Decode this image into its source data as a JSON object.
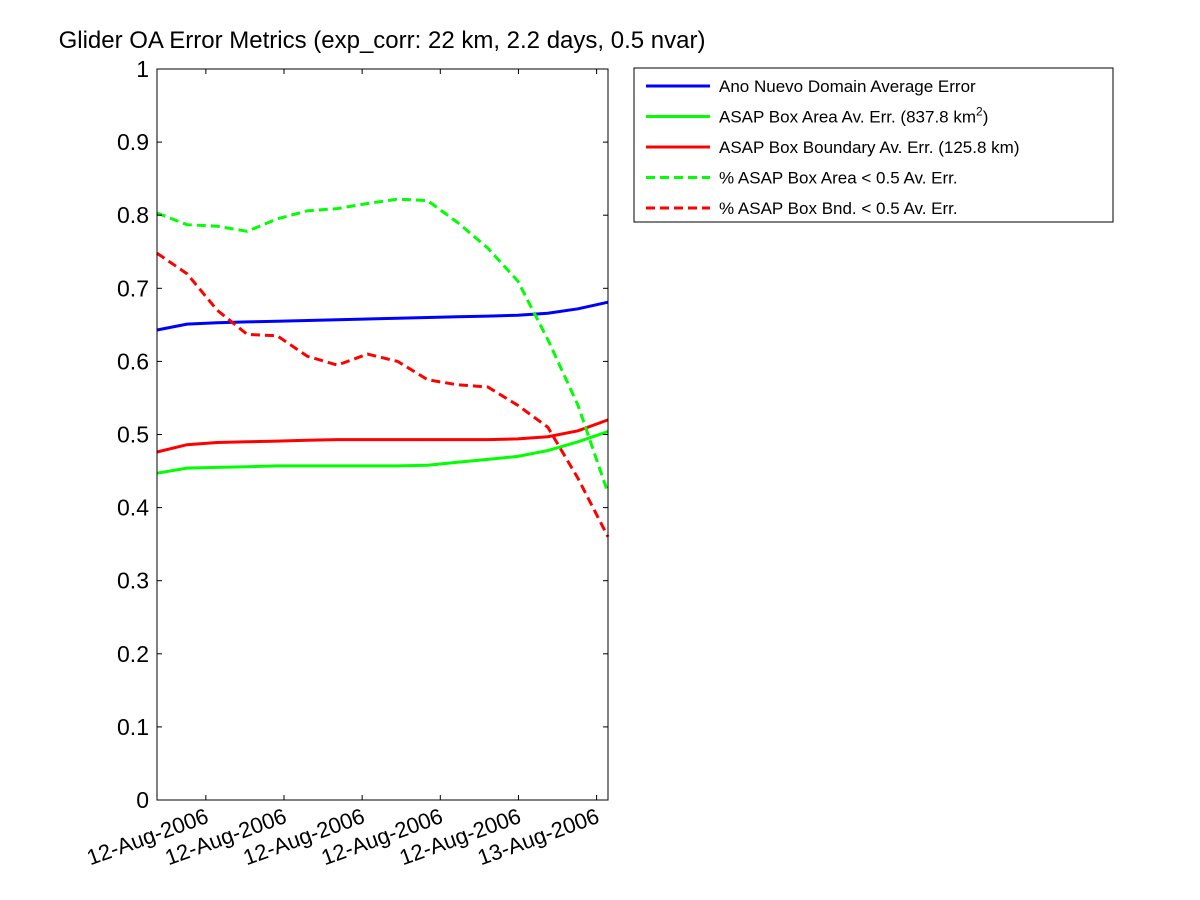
{
  "chart_data": {
    "type": "line",
    "title": "Glider OA Error Metrics (exp_corr: 22 km, 2.2 days, 0.5 nvar)",
    "xlabel": "",
    "ylabel": "",
    "ylim": [
      0,
      1
    ],
    "xlim": [
      "2006-08-12T01:30",
      "2006-08-13T00:35"
    ],
    "yticks": [
      "0",
      "0.1",
      "0.2",
      "0.3",
      "0.4",
      "0.5",
      "0.6",
      "0.7",
      "0.8",
      "0.9",
      "1"
    ],
    "xticks": [
      {
        "t": "2006-08-12T04:00",
        "label": "12-Aug-2006"
      },
      {
        "t": "2006-08-12T08:00",
        "label": "12-Aug-2006"
      },
      {
        "t": "2006-08-12T12:00",
        "label": "12-Aug-2006"
      },
      {
        "t": "2006-08-12T16:00",
        "label": "12-Aug-2006"
      },
      {
        "t": "2006-08-12T20:00",
        "label": "12-Aug-2006"
      },
      {
        "t": "2006-08-13T00:00",
        "label": "13-Aug-2006"
      }
    ],
    "grid": false,
    "legend_placement": "outside-top-right",
    "x": [
      "2006-08-12T01:30",
      "2006-08-12T03:02",
      "2006-08-12T04:35",
      "2006-08-12T06:07",
      "2006-08-12T07:39",
      "2006-08-12T09:12",
      "2006-08-12T10:44",
      "2006-08-12T12:16",
      "2006-08-12T13:49",
      "2006-08-12T15:21",
      "2006-08-12T16:53",
      "2006-08-12T18:26",
      "2006-08-12T19:58",
      "2006-08-12T21:30",
      "2006-08-12T23:03",
      "2006-08-13T00:35"
    ],
    "series": [
      {
        "name": "Ano Nuevo Domain Average Error",
        "color": "#0000ff",
        "dash": "solid",
        "values": [
          0.643,
          0.651,
          0.653,
          0.654,
          0.655,
          0.656,
          0.657,
          0.658,
          0.659,
          0.66,
          0.661,
          0.662,
          0.663,
          0.666,
          0.672,
          0.681
        ]
      },
      {
        "name": "ASAP Box Area Av. Err. (837.8 km",
        "name_sup": "2",
        "name_tail": ")",
        "color": "#00ff00",
        "dash": "solid",
        "values": [
          0.447,
          0.454,
          0.455,
          0.456,
          0.457,
          0.457,
          0.457,
          0.457,
          0.457,
          0.458,
          0.462,
          0.466,
          0.47,
          0.478,
          0.49,
          0.504
        ]
      },
      {
        "name": "ASAP Box Boundary Av. Err. (125.8 km)",
        "color": "#ff0000",
        "dash": "solid",
        "values": [
          0.476,
          0.486,
          0.489,
          0.49,
          0.491,
          0.492,
          0.493,
          0.493,
          0.493,
          0.493,
          0.493,
          0.493,
          0.494,
          0.497,
          0.505,
          0.52
        ]
      },
      {
        "name": "% ASAP Box Area < 0.5 Av. Err.",
        "color": "#00ff00",
        "dash": "dashed",
        "values": [
          0.803,
          0.787,
          0.785,
          0.778,
          0.795,
          0.806,
          0.809,
          0.816,
          0.822,
          0.82,
          0.79,
          0.755,
          0.71,
          0.63,
          0.54,
          0.42
        ]
      },
      {
        "name": "% ASAP Box Bnd. < 0.5 Av. Err.",
        "color": "#ff0000",
        "dash": "dashed",
        "values": [
          0.748,
          0.72,
          0.67,
          0.637,
          0.635,
          0.607,
          0.595,
          0.61,
          0.6,
          0.575,
          0.568,
          0.565,
          0.54,
          0.51,
          0.44,
          0.36
        ]
      }
    ]
  }
}
